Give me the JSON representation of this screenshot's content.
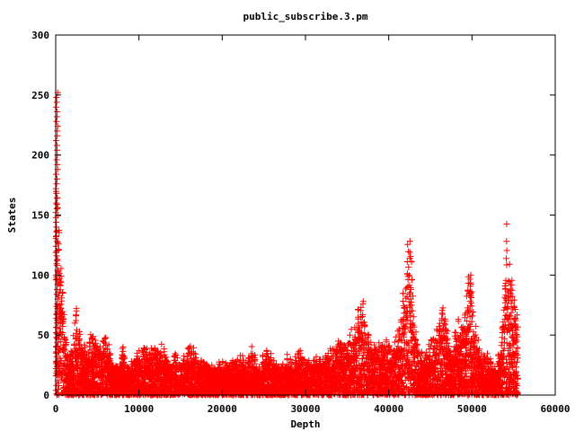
{
  "chart_data": {
    "type": "scatter",
    "title": "public_subscribe.3.pm",
    "xlabel": "Depth",
    "ylabel": "States",
    "xlim": [
      0,
      60000
    ],
    "ylim": [
      0,
      300
    ],
    "x_ticks": [
      "0",
      "10000",
      "20000",
      "30000",
      "40000",
      "50000",
      "60000"
    ],
    "y_ticks": [
      "0",
      "50",
      "100",
      "150",
      "200",
      "250",
      "300"
    ],
    "x_tick_values": [
      0,
      10000,
      20000,
      30000,
      40000,
      50000,
      60000
    ],
    "y_tick_values": [
      0,
      50,
      100,
      150,
      200,
      250,
      300
    ],
    "grid": false,
    "marker": "+",
    "series_color": "#ff0000",
    "x_data_max": 55500,
    "envelope": [
      [
        0,
        255
      ],
      [
        100,
        240
      ],
      [
        250,
        200
      ],
      [
        500,
        150
      ],
      [
        800,
        100
      ],
      [
        1200,
        60
      ],
      [
        1600,
        30
      ],
      [
        2000,
        50
      ],
      [
        2400,
        80
      ],
      [
        2800,
        60
      ],
      [
        3300,
        45
      ],
      [
        3800,
        40
      ],
      [
        4300,
        55
      ],
      [
        4800,
        50
      ],
      [
        5300,
        45
      ],
      [
        5800,
        60
      ],
      [
        6300,
        45
      ],
      [
        6800,
        30
      ],
      [
        7500,
        25
      ],
      [
        8000,
        45
      ],
      [
        8500,
        25
      ],
      [
        9200,
        30
      ],
      [
        10000,
        40
      ],
      [
        10600,
        45
      ],
      [
        11200,
        35
      ],
      [
        11800,
        50
      ],
      [
        12400,
        40
      ],
      [
        13000,
        45
      ],
      [
        13700,
        30
      ],
      [
        14300,
        35
      ],
      [
        15000,
        30
      ],
      [
        15700,
        40
      ],
      [
        16400,
        45
      ],
      [
        17000,
        30
      ],
      [
        17700,
        35
      ],
      [
        18500,
        25
      ],
      [
        19200,
        30
      ],
      [
        20000,
        30
      ],
      [
        20800,
        28
      ],
      [
        21500,
        30
      ],
      [
        22300,
        35
      ],
      [
        23000,
        30
      ],
      [
        23600,
        42
      ],
      [
        24300,
        30
      ],
      [
        25000,
        35
      ],
      [
        25600,
        40
      ],
      [
        26300,
        30
      ],
      [
        27000,
        25
      ],
      [
        27800,
        35
      ],
      [
        28500,
        30
      ],
      [
        29300,
        40
      ],
      [
        30000,
        35
      ],
      [
        30800,
        30
      ],
      [
        31500,
        40
      ],
      [
        32200,
        35
      ],
      [
        32900,
        40
      ],
      [
        33500,
        45
      ],
      [
        34200,
        50
      ],
      [
        34900,
        45
      ],
      [
        35500,
        60
      ],
      [
        36200,
        75
      ],
      [
        36800,
        88
      ],
      [
        37400,
        55
      ],
      [
        38000,
        45
      ],
      [
        38600,
        50
      ],
      [
        39200,
        45
      ],
      [
        39800,
        50
      ],
      [
        40400,
        40
      ],
      [
        41000,
        55
      ],
      [
        41500,
        75
      ],
      [
        41900,
        100
      ],
      [
        42300,
        150
      ],
      [
        42700,
        140
      ],
      [
        43100,
        60
      ],
      [
        43700,
        40
      ],
      [
        44300,
        35
      ],
      [
        44900,
        45
      ],
      [
        45500,
        55
      ],
      [
        46000,
        70
      ],
      [
        46500,
        85
      ],
      [
        47000,
        60
      ],
      [
        47600,
        40
      ],
      [
        48200,
        70
      ],
      [
        48800,
        60
      ],
      [
        49400,
        90
      ],
      [
        49800,
        115
      ],
      [
        50200,
        70
      ],
      [
        50800,
        45
      ],
      [
        51400,
        35
      ],
      [
        52000,
        35
      ],
      [
        52600,
        30
      ],
      [
        53200,
        35
      ],
      [
        53700,
        60
      ],
      [
        54100,
        155
      ],
      [
        54500,
        120
      ],
      [
        54900,
        100
      ],
      [
        55300,
        80
      ],
      [
        55500,
        70
      ]
    ]
  }
}
